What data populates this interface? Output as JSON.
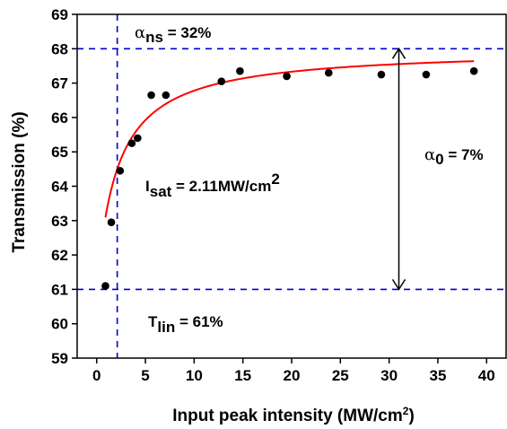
{
  "chart_data": {
    "type": "scatter",
    "title": "",
    "xlabel": "Input peak intensity (MW/cm",
    "xlabel_sup": "2",
    "xlabel_close": ")",
    "ylabel": "Transmission (%)",
    "xlim": [
      -2,
      42
    ],
    "ylim": [
      59,
      69
    ],
    "xticks": [
      0,
      5,
      10,
      15,
      20,
      25,
      30,
      35,
      40
    ],
    "yticks": [
      59,
      60,
      61,
      62,
      63,
      64,
      65,
      66,
      67,
      68,
      69
    ],
    "grid": false,
    "point_color": "#000000",
    "fit_color": "#ff0000",
    "guide_color": "#0000cc",
    "series": [
      {
        "x": [
          0.9,
          1.5,
          2.4,
          3.6,
          4.2,
          5.6,
          7.1,
          12.8,
          14.7,
          19.5,
          23.8,
          29.2,
          33.8,
          38.7
        ],
        "y": [
          61.1,
          62.95,
          64.45,
          65.25,
          65.4,
          66.65,
          66.65,
          67.05,
          67.35,
          67.2,
          67.3,
          67.25,
          67.25,
          67.35
        ]
      }
    ],
    "fit": {
      "T_lin": 61,
      "alpha0": 7,
      "Isat": 2.11,
      "x_start": 0.9,
      "x_end": 38.7
    },
    "guides": {
      "h_lines": [
        68,
        61
      ],
      "v_line_x": 2.11
    },
    "arrow": {
      "x": 31,
      "y_from": 61,
      "y_to": 68
    },
    "annotations": {
      "alpha_ns": {
        "sym": "α",
        "sub": "ns",
        "text": " = 32%"
      },
      "alpha_0": {
        "sym": "α",
        "sub": "0",
        "text": " = 7%"
      },
      "isat": {
        "main": "I",
        "sub": "sat",
        "text": " = 2.11MW/cm",
        "sup": "2"
      },
      "tlin": {
        "main": "T",
        "sub": "lin",
        "text": " = 61%"
      }
    }
  }
}
